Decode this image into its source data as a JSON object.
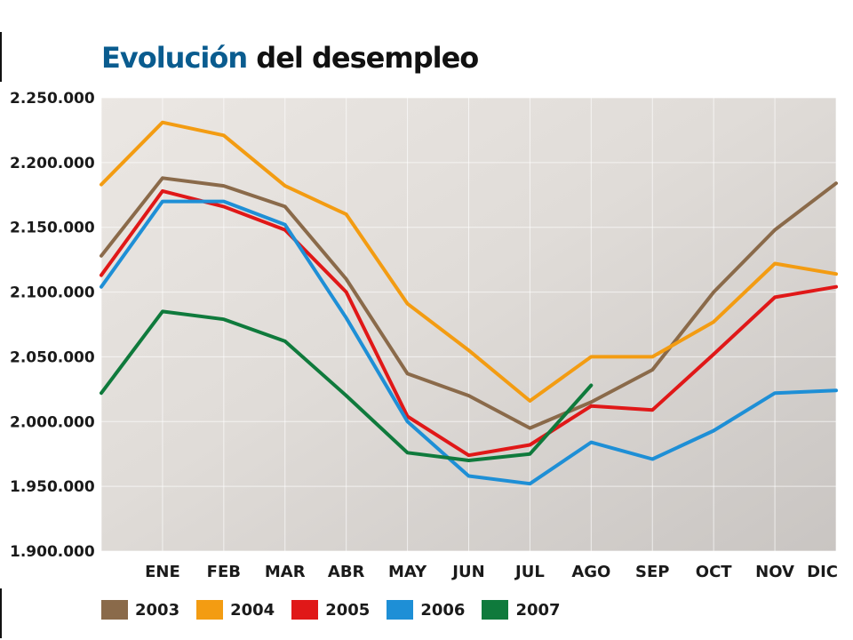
{
  "title": {
    "highlight": "Evolución",
    "rest": "del desempleo"
  },
  "chart_data": {
    "type": "line",
    "title": "Evolución del desempleo",
    "categories": [
      "DIC",
      "ENE",
      "FEB",
      "MAR",
      "ABR",
      "MAY",
      "JUN",
      "JUL",
      "AGO",
      "SEP",
      "OCT",
      "NOV",
      "DIC"
    ],
    "x_tick_labels": [
      "ENE",
      "FEB",
      "MAR",
      "ABR",
      "MAY",
      "JUN",
      "JUL",
      "AGO",
      "SEP",
      "OCT",
      "NOV",
      "DIC"
    ],
    "y_ticks": [
      1900000,
      1950000,
      2000000,
      2050000,
      2100000,
      2150000,
      2200000,
      2250000
    ],
    "y_tick_labels": [
      "1.900.000",
      "1.950.000",
      "2.000.000",
      "2.050.000",
      "2.100.000",
      "2.150.000",
      "2.200.000",
      "2.250.000"
    ],
    "ylim": [
      1900000,
      2250000
    ],
    "grid": true,
    "legend_position": "bottom",
    "series": [
      {
        "name": "2003",
        "color": "#8a6a4a",
        "values": [
          2128000,
          2188000,
          2182000,
          2166000,
          2110000,
          2037000,
          2020000,
          1995000,
          2015000,
          2040000,
          2100000,
          2148000,
          2184000
        ]
      },
      {
        "name": "2004",
        "color": "#f39c12",
        "values": [
          2183000,
          2231000,
          2221000,
          2182000,
          2160000,
          2091000,
          2055000,
          2016000,
          2050000,
          2050000,
          2077000,
          2122000,
          2114000
        ]
      },
      {
        "name": "2005",
        "color": "#e01818",
        "values": [
          2113000,
          2178000,
          2166000,
          2148000,
          2100000,
          2004000,
          1974000,
          1982000,
          2012000,
          2009000,
          2052000,
          2096000,
          2104000
        ]
      },
      {
        "name": "2006",
        "color": "#1e8fd6",
        "values": [
          2104000,
          2170000,
          2170000,
          2152000,
          2080000,
          2000000,
          1958000,
          1952000,
          1984000,
          1971000,
          1993000,
          2022000,
          2024000
        ]
      },
      {
        "name": "2007",
        "color": "#0f7a3c",
        "values": [
          2022000,
          2085000,
          2079000,
          2062000,
          2020000,
          1976000,
          1970000,
          1975000,
          2028000,
          null,
          null,
          null,
          null
        ]
      }
    ]
  }
}
